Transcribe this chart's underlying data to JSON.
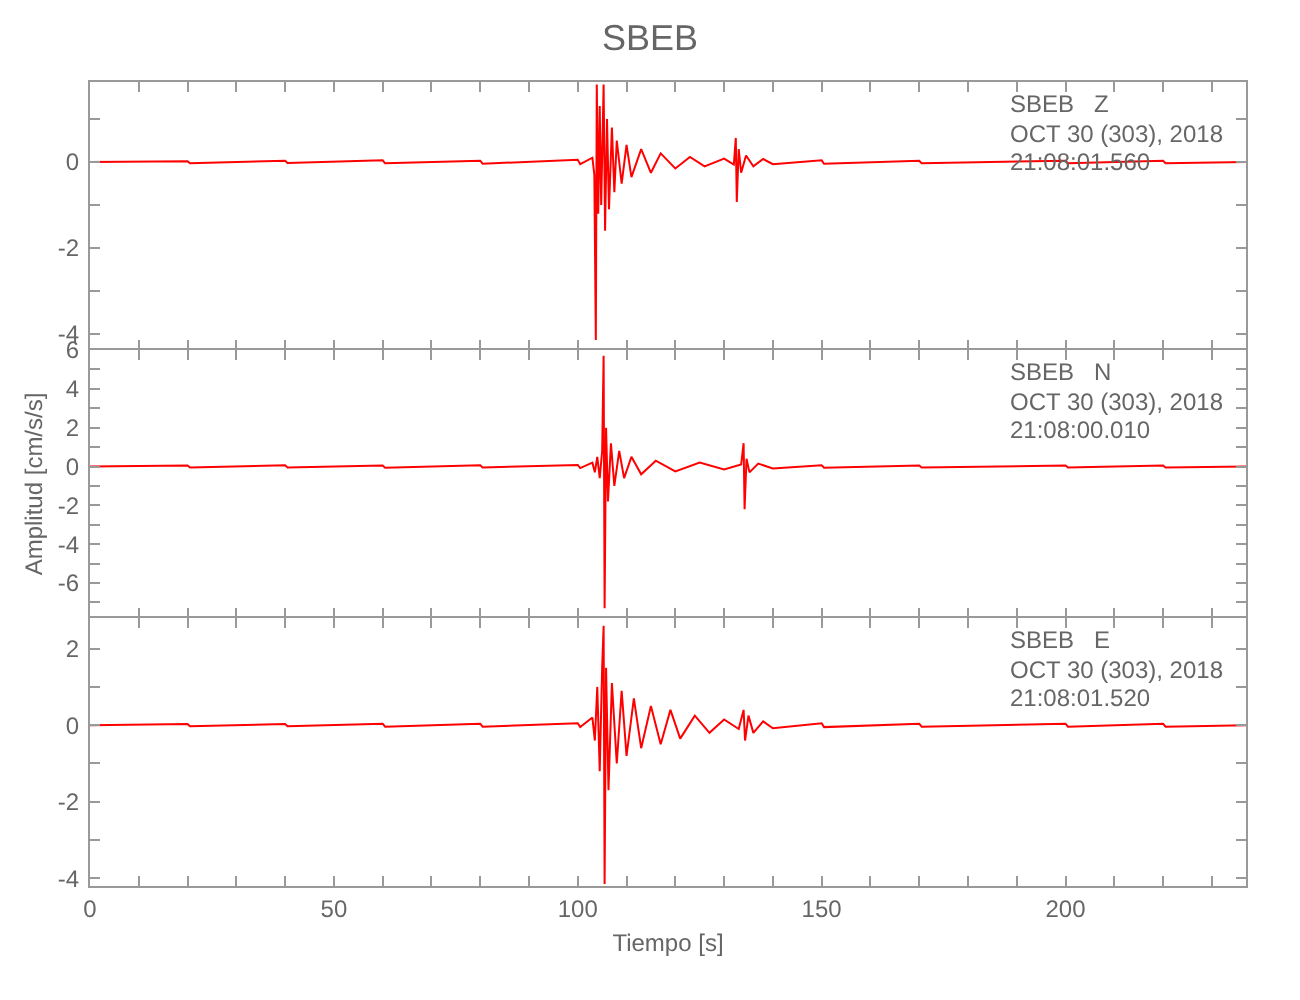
{
  "chart_data": [
    {
      "type": "line",
      "title": "SBEB",
      "annotations": [
        "SBEB   Z",
        "OCT 30 (303), 2018",
        "21:08:01.560"
      ],
      "xlim": [
        0,
        237
      ],
      "xticks": [
        0,
        {
          "value": 10,
          "label": null
        },
        {
          "value": 20,
          "label": null
        },
        {
          "value": 30,
          "label": null
        },
        {
          "value": 40,
          "label": null
        },
        50,
        {
          "value": 60,
          "label": null
        },
        {
          "value": 70,
          "label": null
        },
        {
          "value": 80,
          "label": null
        },
        {
          "value": 90,
          "label": null
        },
        100,
        {
          "value": 110,
          "label": null
        },
        {
          "value": 120,
          "label": null
        },
        {
          "value": 130,
          "label": null
        },
        {
          "value": 140,
          "label": null
        },
        150,
        {
          "value": 160,
          "label": null
        },
        {
          "value": 170,
          "label": null
        },
        {
          "value": 180,
          "label": null
        },
        {
          "value": 190,
          "label": null
        },
        200,
        {
          "value": 210,
          "label": null
        },
        {
          "value": 220,
          "label": null
        },
        {
          "value": 230,
          "label": null
        }
      ],
      "ylim": [
        -4.37,
        1.86
      ],
      "yticks": [
        -4,
        {
          "value": -3,
          "label": null
        },
        -2,
        {
          "value": -1,
          "label": null
        },
        0,
        {
          "value": 1,
          "label": null
        }
      ],
      "tick_labels": "y",
      "grid": false,
      "legend": false,
      "series": [
        {
          "color": "#ff0000",
          "x": [
            0,
            20,
            20.5,
            40,
            40.5,
            60,
            60.5,
            80,
            80.5,
            100,
            100.5,
            103,
            103.4,
            103.7,
            103.9,
            104.2,
            104.5,
            104.8,
            105.3,
            105.6,
            106,
            106.4,
            107,
            107.5,
            108,
            109,
            110,
            111,
            113,
            115,
            117,
            120,
            123,
            126,
            130,
            132,
            132.4,
            132.6,
            133,
            133.5,
            134.5,
            136,
            138,
            140,
            150,
            150.5,
            170,
            170.5,
            200,
            200.5,
            220,
            220.5,
            237
          ],
          "values": [
            0,
            0.02,
            -0.03,
            0.03,
            -0.02,
            0.04,
            -0.03,
            0.03,
            -0.04,
            0.05,
            -0.05,
            0.1,
            -0.3,
            -4.14,
            1.8,
            -1.2,
            1.3,
            -1.0,
            1.8,
            -1.6,
            1.0,
            -1.1,
            0.8,
            -0.7,
            0.5,
            -0.5,
            0.4,
            -0.35,
            0.3,
            -0.25,
            0.2,
            -0.15,
            0.12,
            -0.1,
            0.08,
            -0.06,
            0.56,
            -0.93,
            0.3,
            -0.25,
            0.15,
            -0.1,
            0.07,
            -0.05,
            0.04,
            -0.04,
            0.03,
            -0.03,
            0.03,
            -0.03,
            0.03,
            -0.03,
            0
          ]
        }
      ]
    },
    {
      "type": "line",
      "ylabel": "Amplitud [cm/s/s]",
      "annotations": [
        "SBEB   N",
        "OCT 30 (303), 2018",
        "21:08:00.010"
      ],
      "xlim": [
        0,
        237
      ],
      "xticks": [
        0,
        {
          "value": 10,
          "label": null
        },
        {
          "value": 20,
          "label": null
        },
        {
          "value": 30,
          "label": null
        },
        {
          "value": 40,
          "label": null
        },
        50,
        {
          "value": 60,
          "label": null
        },
        {
          "value": 70,
          "label": null
        },
        {
          "value": 80,
          "label": null
        },
        {
          "value": 90,
          "label": null
        },
        100,
        {
          "value": 110,
          "label": null
        },
        {
          "value": 120,
          "label": null
        },
        {
          "value": 130,
          "label": null
        },
        {
          "value": 140,
          "label": null
        },
        150,
        {
          "value": 160,
          "label": null
        },
        {
          "value": 170,
          "label": null
        },
        {
          "value": 180,
          "label": null
        },
        {
          "value": 190,
          "label": null
        },
        200,
        {
          "value": 210,
          "label": null
        },
        {
          "value": 220,
          "label": null
        },
        {
          "value": 230,
          "label": null
        }
      ],
      "ylim": [
        -7.8,
        6
      ],
      "yticks": [
        {
          "value": -7,
          "label": null
        },
        -6,
        {
          "value": -5,
          "label": null
        },
        -4,
        {
          "value": -3,
          "label": null
        },
        -2,
        {
          "value": -1,
          "label": null
        },
        0,
        {
          "value": 1,
          "label": null
        },
        2,
        {
          "value": 3,
          "label": null
        },
        4,
        {
          "value": 5,
          "label": null
        },
        6
      ],
      "tick_labels": "y",
      "grid": false,
      "legend": false,
      "series": [
        {
          "color": "#ff0000",
          "x": [
            0,
            20,
            20.5,
            40,
            40.5,
            60,
            60.5,
            80,
            80.5,
            100,
            100.5,
            103,
            103.5,
            104,
            104.5,
            105,
            105.3,
            105.5,
            105.8,
            106.2,
            106.8,
            107.5,
            108.5,
            109.5,
            111,
            113,
            116,
            120,
            125,
            130,
            133.5,
            134,
            134.2,
            134.6,
            135.2,
            137,
            140,
            150,
            150.5,
            170,
            170.5,
            200,
            200.5,
            220,
            220.5,
            237
          ],
          "values": [
            0,
            0.05,
            -0.05,
            0.06,
            -0.05,
            0.05,
            -0.06,
            0.06,
            -0.05,
            0.08,
            -0.08,
            0.2,
            -0.3,
            0.5,
            -0.6,
            0.8,
            5.7,
            -7.3,
            2.0,
            -1.8,
            1.2,
            -1.0,
            0.8,
            -0.6,
            0.5,
            -0.4,
            0.3,
            -0.25,
            0.2,
            -0.15,
            0.1,
            1.2,
            -2.2,
            0.4,
            -0.3,
            0.15,
            -0.1,
            0.06,
            -0.06,
            0.05,
            -0.05,
            0.05,
            -0.05,
            0.05,
            -0.05,
            0
          ]
        }
      ]
    },
    {
      "type": "line",
      "xlabel": "Tiempo [s]",
      "annotations": [
        "SBEB   E",
        "OCT 30 (303), 2018",
        "21:08:01.520"
      ],
      "xlim": [
        0,
        237
      ],
      "xticks": [
        0,
        {
          "value": 10,
          "label": null
        },
        {
          "value": 20,
          "label": null
        },
        {
          "value": 30,
          "label": null
        },
        {
          "value": 40,
          "label": null
        },
        50,
        {
          "value": 60,
          "label": null
        },
        {
          "value": 70,
          "label": null
        },
        {
          "value": 80,
          "label": null
        },
        {
          "value": 90,
          "label": null
        },
        100,
        {
          "value": 110,
          "label": null
        },
        {
          "value": 120,
          "label": null
        },
        {
          "value": 130,
          "label": null
        },
        {
          "value": 140,
          "label": null
        },
        150,
        {
          "value": 160,
          "label": null
        },
        {
          "value": 170,
          "label": null
        },
        {
          "value": 180,
          "label": null
        },
        {
          "value": 190,
          "label": null
        },
        200,
        {
          "value": 210,
          "label": null
        },
        {
          "value": 220,
          "label": null
        },
        {
          "value": 230,
          "label": null
        }
      ],
      "ylim": [
        -4.2,
        2.8
      ],
      "yticks": [
        -4,
        {
          "value": -3,
          "label": null
        },
        -2,
        {
          "value": -1,
          "label": null
        },
        0,
        {
          "value": 1,
          "label": null
        },
        2
      ],
      "grid": false,
      "legend": false,
      "series": [
        {
          "color": "#ff0000",
          "x": [
            0,
            20,
            20.5,
            40,
            40.5,
            60,
            60.5,
            80,
            80.5,
            100,
            100.5,
            103,
            103.5,
            104,
            104.5,
            105,
            105.3,
            105.5,
            105.8,
            106.3,
            107,
            108,
            109,
            110,
            111.5,
            113,
            115,
            117,
            119,
            121,
            124,
            127,
            130,
            133,
            134,
            134.3,
            135,
            136,
            138,
            140,
            150,
            150.5,
            170,
            170.5,
            200,
            200.5,
            220,
            220.5,
            237
          ],
          "values": [
            0,
            0.03,
            -0.03,
            0.03,
            -0.03,
            0.04,
            -0.04,
            0.04,
            -0.04,
            0.05,
            -0.05,
            0.2,
            -0.4,
            1.0,
            -1.2,
            1.5,
            2.6,
            -4.15,
            1.5,
            -1.7,
            1.1,
            -1.0,
            0.9,
            -0.8,
            0.7,
            -0.6,
            0.5,
            -0.5,
            0.4,
            -0.35,
            0.25,
            -0.2,
            0.15,
            -0.1,
            0.4,
            -0.4,
            0.25,
            -0.2,
            0.1,
            -0.08,
            0.05,
            -0.05,
            0.04,
            -0.04,
            0.04,
            -0.04,
            0.04,
            -0.04,
            0
          ]
        }
      ]
    }
  ]
}
